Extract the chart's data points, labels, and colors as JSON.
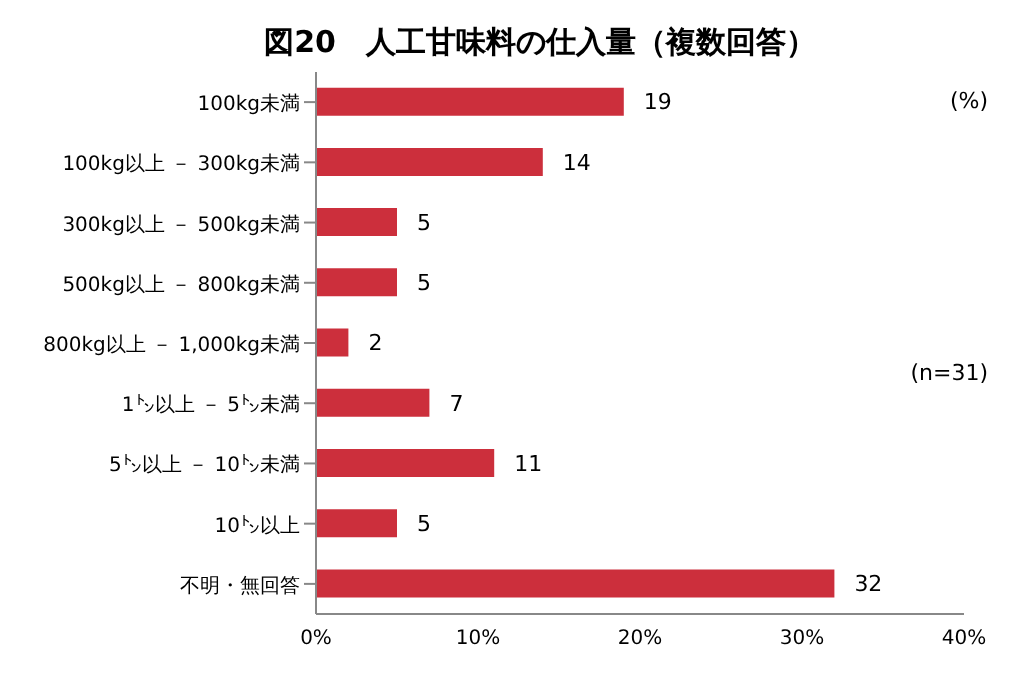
{
  "chart_data": {
    "type": "bar",
    "orientation": "horizontal",
    "title": "図20　人工甘味料の仕入量（複数回答）",
    "categories": [
      "100kg未満",
      "100kg以上 － 300kg未満",
      "300kg以上 － 500kg未満",
      "500kg以上 － 800kg未満",
      "800kg以上 － 1,000kg未満",
      "1㌧以上 － 5㌧未満",
      "5㌧以上 － 10㌧未満",
      "10㌧以上",
      "不明・無回答"
    ],
    "values": [
      19,
      14,
      5,
      5,
      2,
      7,
      11,
      5,
      32
    ],
    "color": "#cc2f3c",
    "data_labels": true,
    "xlim": [
      0,
      40
    ],
    "xticks": [
      {
        "value": 0,
        "label": "0%"
      },
      {
        "value": 10,
        "label": "10%"
      },
      {
        "value": 20,
        "label": "20%"
      },
      {
        "value": 30,
        "label": "30%"
      },
      {
        "value": 40,
        "label": "40%"
      }
    ],
    "annotations": [
      "(%)",
      "(n=31)"
    ]
  }
}
